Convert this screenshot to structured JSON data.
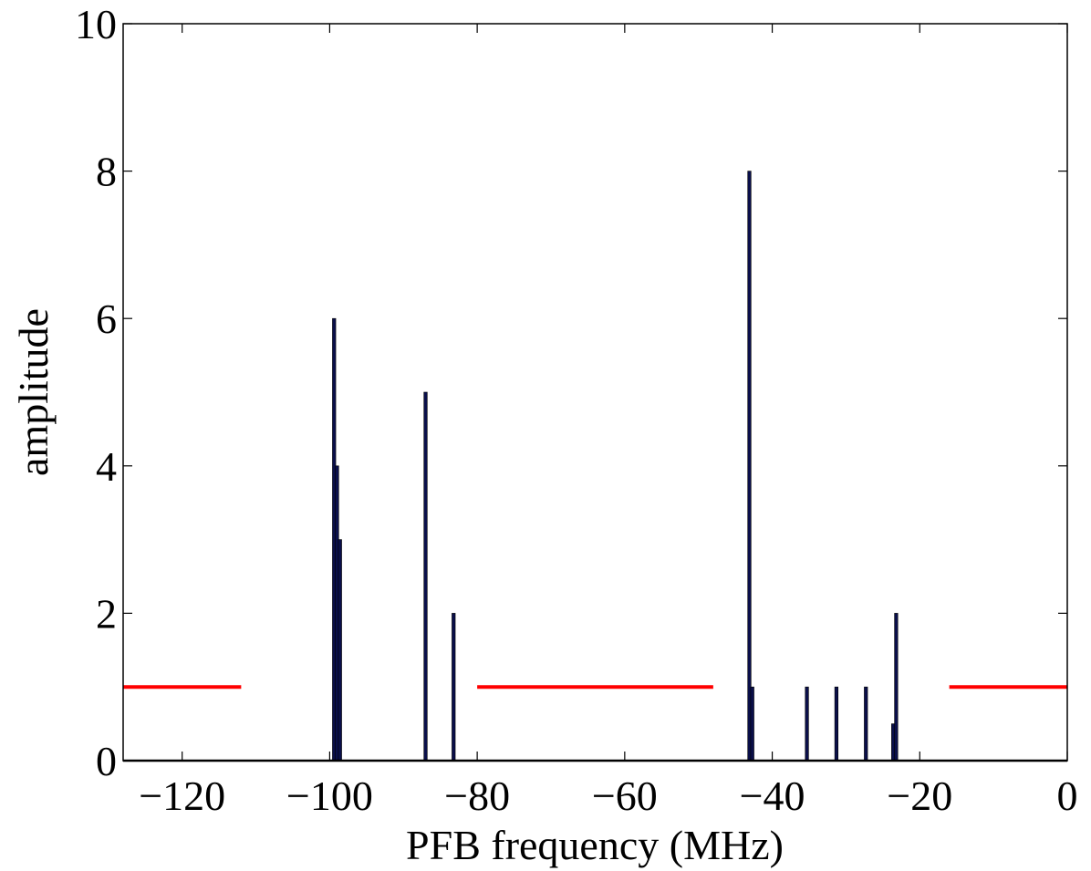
{
  "chart_data": {
    "type": "bar",
    "title": "",
    "xlabel": "PFB frequency (MHz)",
    "ylabel": "amplitude",
    "xlim": [
      -128,
      0
    ],
    "ylim": [
      0,
      10
    ],
    "xticks": [
      -120,
      -100,
      -80,
      -60,
      -40,
      -20,
      0
    ],
    "yticks": [
      0,
      2,
      4,
      6,
      8,
      10
    ],
    "grid": false,
    "bar_color": "#0a0f4a",
    "threshold_color": "#ff0000",
    "bars": [
      {
        "x": -99.4,
        "y": 6
      },
      {
        "x": -99.0,
        "y": 4
      },
      {
        "x": -98.6,
        "y": 3
      },
      {
        "x": -87.0,
        "y": 5
      },
      {
        "x": -83.2,
        "y": 2
      },
      {
        "x": -43.1,
        "y": 8
      },
      {
        "x": -42.7,
        "y": 1
      },
      {
        "x": -35.3,
        "y": 1
      },
      {
        "x": -31.3,
        "y": 1
      },
      {
        "x": -27.3,
        "y": 1
      },
      {
        "x": -23.6,
        "y": 0.5
      },
      {
        "x": -23.2,
        "y": 2
      }
    ],
    "threshold_segments": [
      {
        "x": [
          -128,
          -112
        ],
        "y": 1
      },
      {
        "x": [
          -80,
          -48
        ],
        "y": 1
      },
      {
        "x": [
          -16,
          0
        ],
        "y": 1
      }
    ]
  }
}
